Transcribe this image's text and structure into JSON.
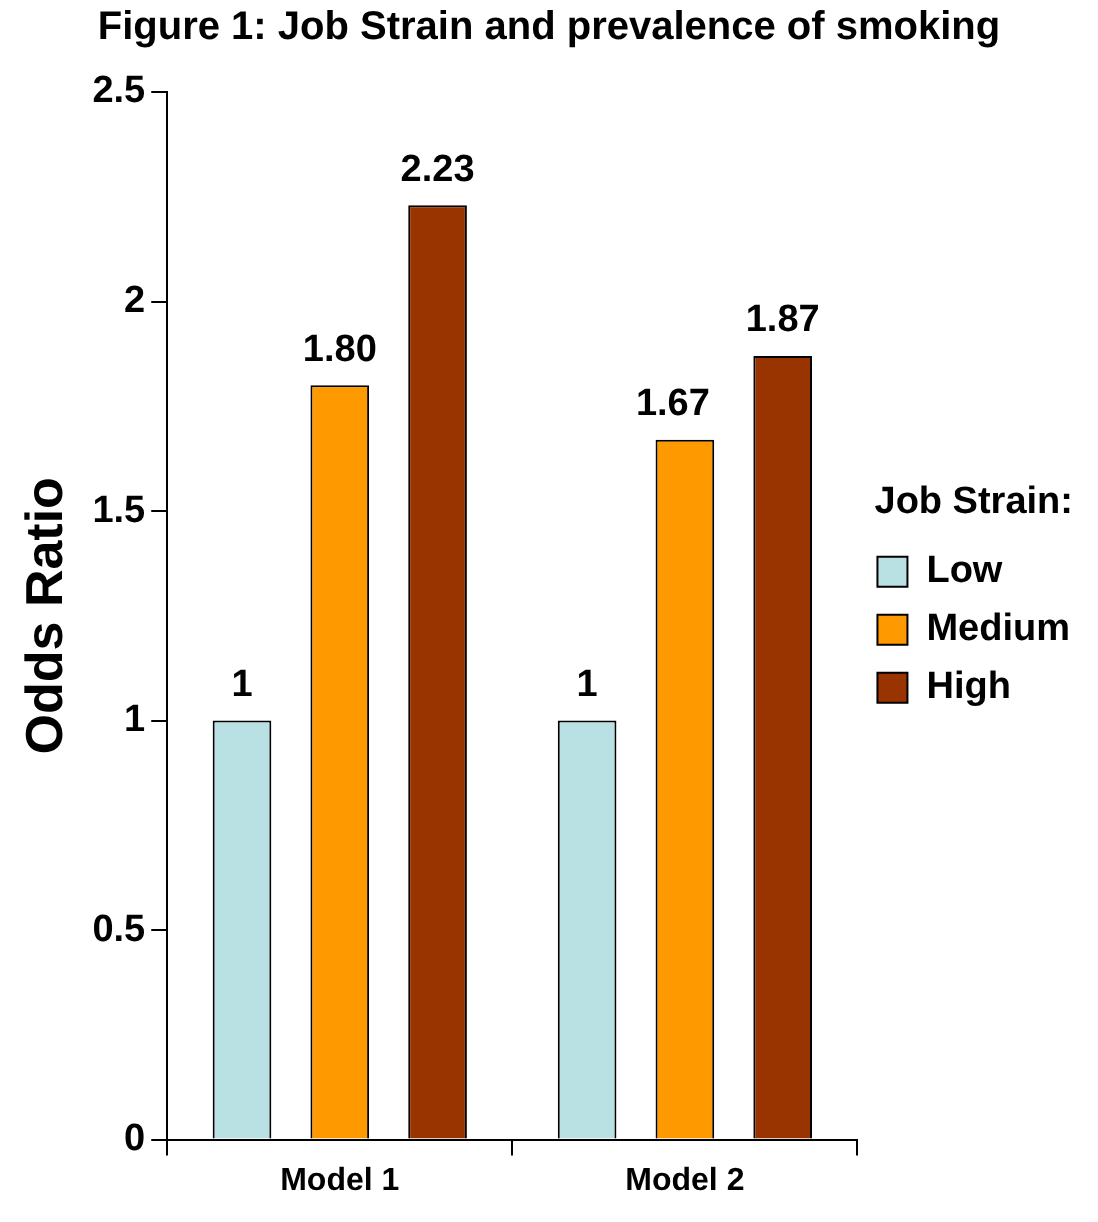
{
  "chart_data": {
    "type": "bar",
    "title": "Figure 1: Job Strain and prevalence of smoking",
    "ylabel": "Odds Ratio",
    "legend_title": "Job Strain:",
    "categories": [
      "Model 1",
      "Model 2"
    ],
    "series": [
      {
        "name": "Low",
        "color": "#b9e0e3",
        "values": [
          1,
          1
        ],
        "value_labels": [
          "1",
          "1"
        ]
      },
      {
        "name": "Medium",
        "color": "#ff9900",
        "values": [
          1.8,
          1.67
        ],
        "value_labels": [
          "1.80",
          "1.67"
        ]
      },
      {
        "name": "High",
        "color": "#993300",
        "values": [
          2.23,
          1.87
        ],
        "value_labels": [
          "2.23",
          "1.87"
        ]
      }
    ],
    "ylim": [
      0,
      2.5
    ],
    "yticks": [
      0,
      0.5,
      1,
      1.5,
      2,
      2.5
    ],
    "grid": false,
    "legend": "right"
  }
}
